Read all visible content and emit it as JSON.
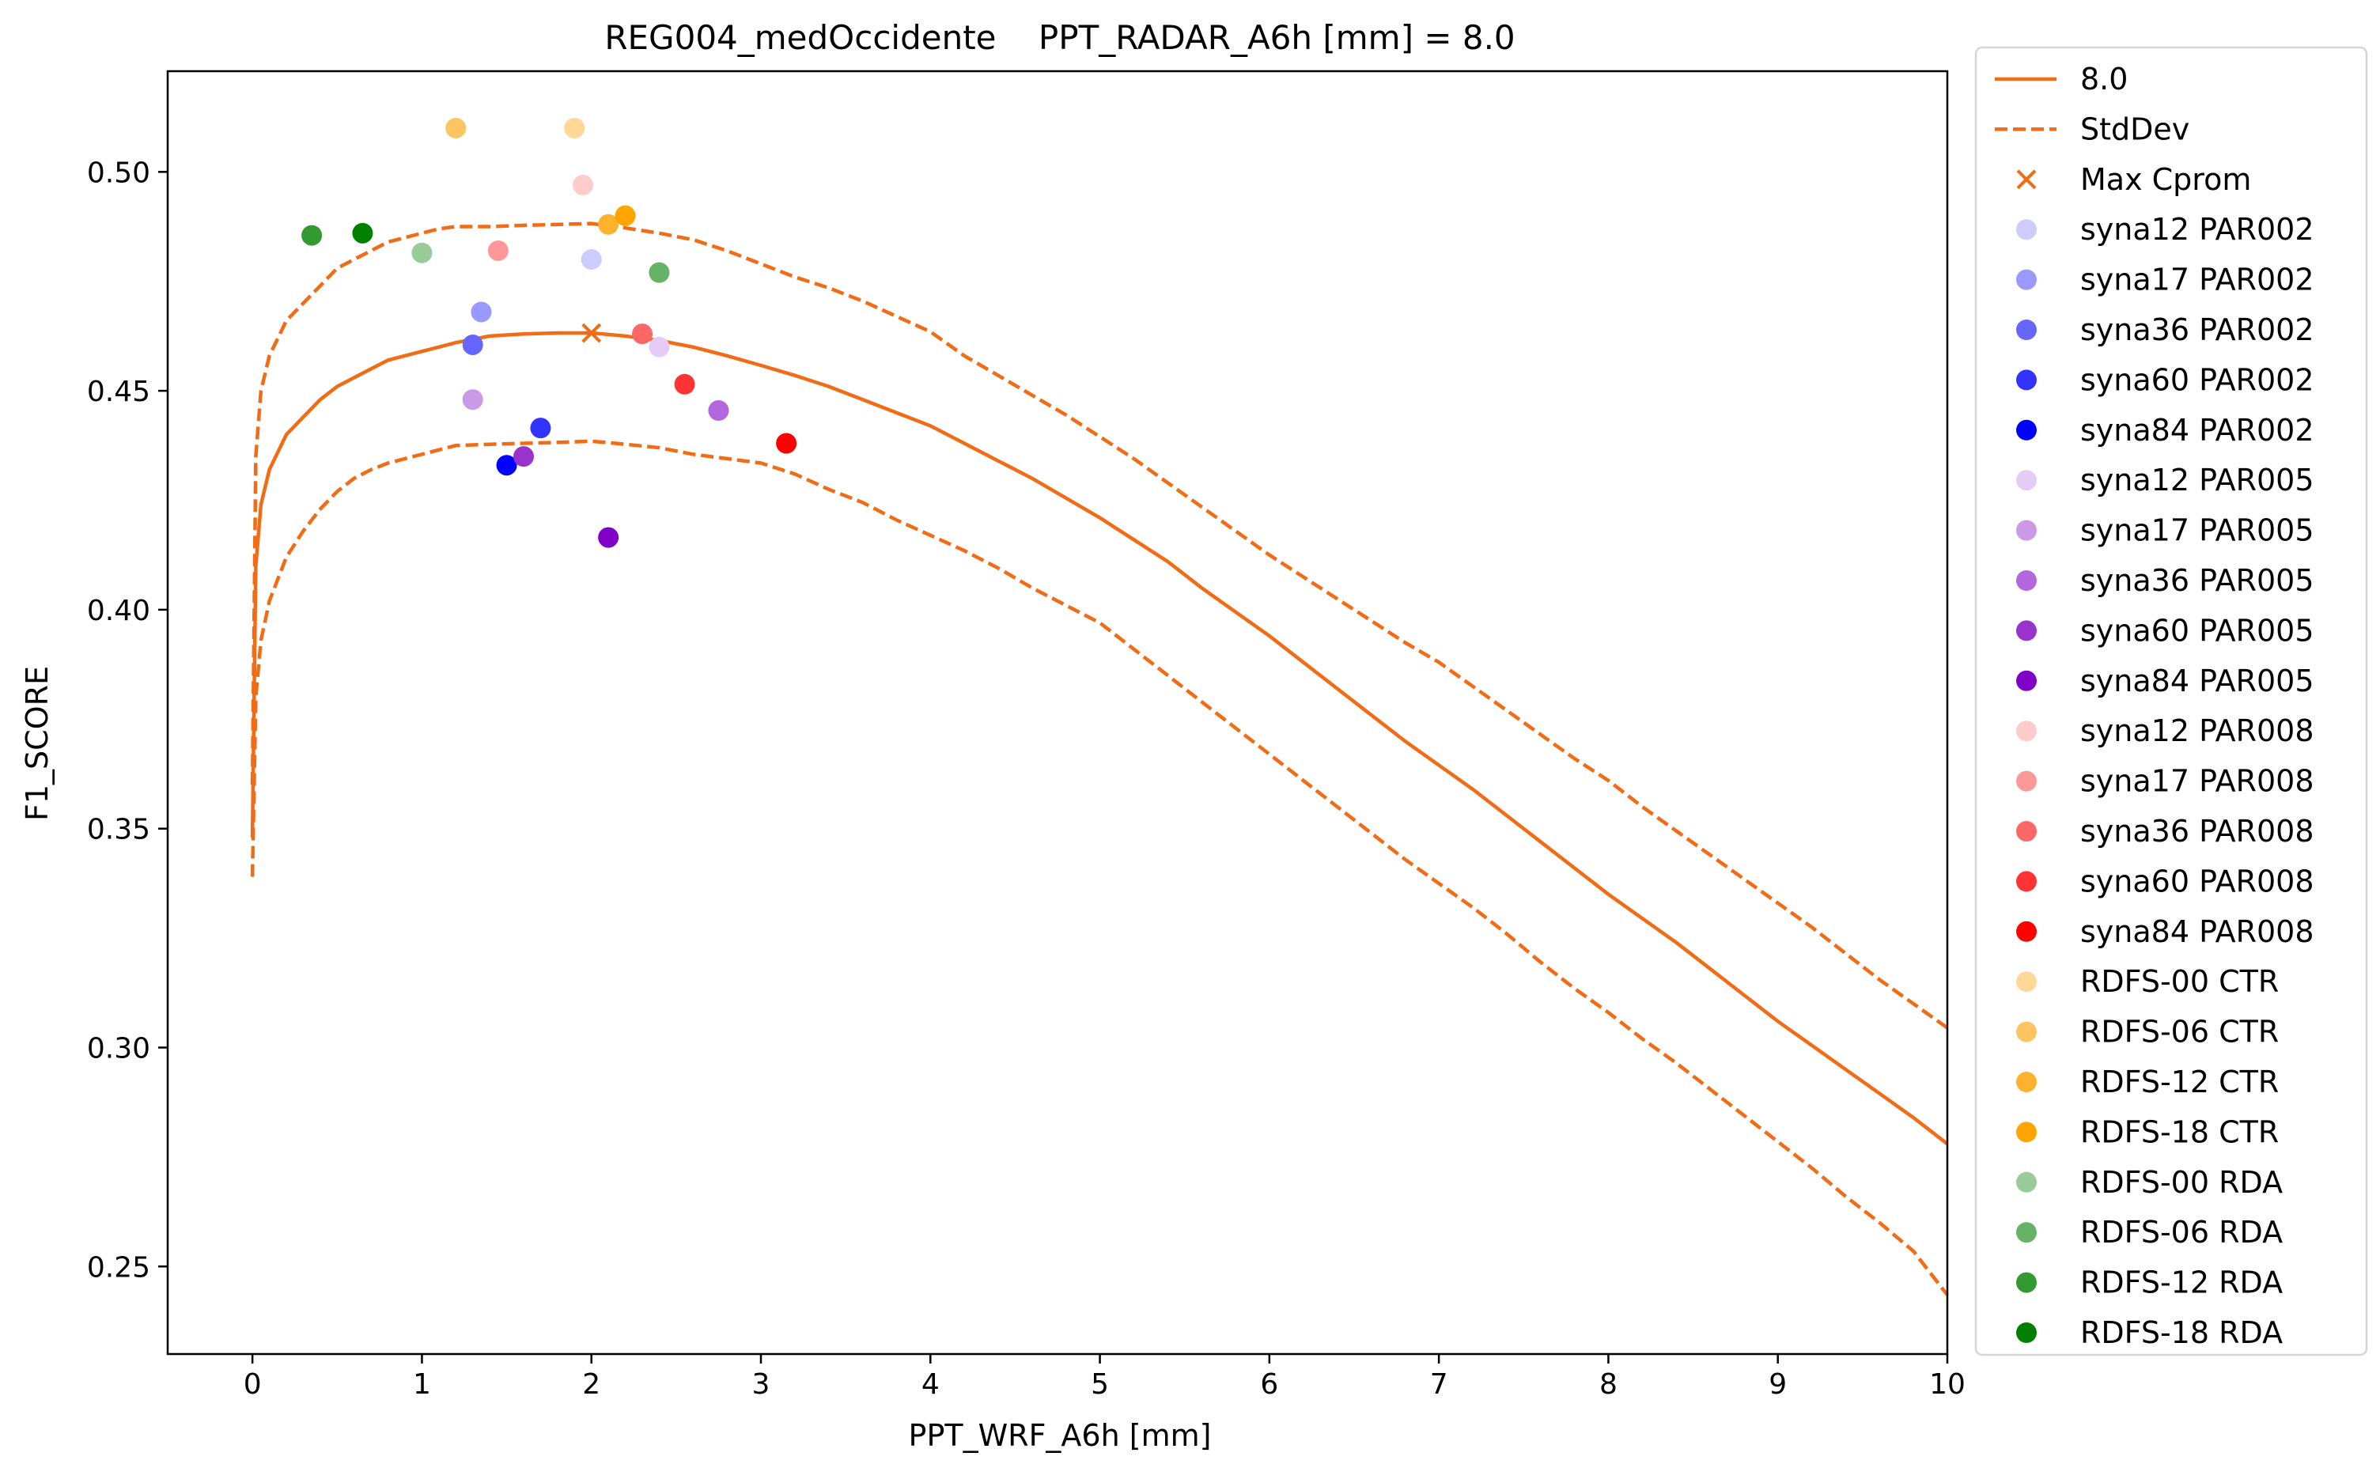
{
  "chart_data": {
    "type": "line",
    "title": "REG004_medOccidente    PPT_RADAR_A6h [mm] = 8.0",
    "xlabel": "PPT_WRF_A6h [mm]",
    "ylabel": "F1_SCORE",
    "xlim": [
      -0.5,
      10
    ],
    "ylim": [
      0.23,
      0.523
    ],
    "xticks": [
      0,
      1,
      2,
      3,
      4,
      5,
      6,
      7,
      8,
      9,
      10
    ],
    "xtick_labels": [
      "0",
      "1",
      "2",
      "3",
      "4",
      "5",
      "6",
      "7",
      "8",
      "9",
      "10"
    ],
    "yticks": [
      0.25,
      0.3,
      0.35,
      0.4,
      0.45,
      0.5
    ],
    "ytick_labels": [
      "0.25",
      "0.30",
      "0.35",
      "0.40",
      "0.45",
      "0.50"
    ],
    "grid": false,
    "legend_position": "outside right",
    "series": [
      {
        "name": "8.0",
        "style": "solid",
        "color": "#f26b15",
        "x": [
          0,
          0.02,
          0.05,
          0.1,
          0.2,
          0.3,
          0.4,
          0.5,
          0.6,
          0.7,
          0.8,
          0.9,
          1.0,
          1.1,
          1.2,
          1.4,
          1.6,
          1.8,
          2.0,
          2.2,
          2.4,
          2.6,
          2.8,
          3.0,
          3.2,
          3.4,
          3.6,
          3.8,
          4.0,
          4.2,
          4.4,
          4.6,
          4.8,
          5.0,
          5.2,
          5.4,
          5.6,
          5.8,
          6.0,
          6.2,
          6.4,
          6.6,
          6.8,
          7.0,
          7.2,
          7.4,
          7.6,
          7.8,
          8.0,
          8.2,
          8.4,
          8.6,
          8.8,
          9.0,
          9.2,
          9.4,
          9.6,
          9.8,
          10.0
        ],
        "values": [
          0.348,
          0.41,
          0.424,
          0.432,
          0.44,
          0.444,
          0.448,
          0.451,
          0.453,
          0.455,
          0.457,
          0.458,
          0.459,
          0.46,
          0.461,
          0.4625,
          0.463,
          0.4632,
          0.4632,
          0.4625,
          0.4615,
          0.46,
          0.458,
          0.4558,
          0.4535,
          0.451,
          0.448,
          0.445,
          0.442,
          0.438,
          0.434,
          0.43,
          0.4255,
          0.421,
          0.416,
          0.411,
          0.405,
          0.3995,
          0.394,
          0.388,
          0.382,
          0.376,
          0.37,
          0.3645,
          0.359,
          0.353,
          0.347,
          0.341,
          0.335,
          0.3295,
          0.324,
          0.318,
          0.312,
          0.306,
          0.3005,
          0.295,
          0.2895,
          0.284,
          0.278
        ]
      },
      {
        "name": "StdDev",
        "style": "dashed",
        "color": "#f26b15",
        "x": [
          0,
          0.02,
          0.05,
          0.1,
          0.2,
          0.3,
          0.4,
          0.5,
          0.6,
          0.7,
          0.8,
          0.9,
          1.0,
          1.1,
          1.2,
          1.4,
          1.6,
          1.8,
          2.0,
          2.2,
          2.4,
          2.6,
          2.8,
          3.0,
          3.2,
          3.4,
          3.6,
          3.8,
          4.0,
          4.2,
          4.4,
          4.6,
          4.8,
          5.0,
          5.2,
          5.4,
          5.6,
          5.8,
          6.0,
          6.2,
          6.4,
          6.6,
          6.8,
          7.0,
          7.2,
          7.4,
          7.6,
          7.8,
          8.0,
          8.2,
          8.4,
          8.6,
          8.8,
          9.0,
          9.2,
          9.4,
          9.6,
          9.8,
          10.0
        ],
        "values": [
          0.36,
          0.435,
          0.45,
          0.458,
          0.466,
          0.47,
          0.474,
          0.478,
          0.48,
          0.482,
          0.484,
          0.485,
          0.486,
          0.487,
          0.4875,
          0.4875,
          0.4878,
          0.488,
          0.4882,
          0.4872,
          0.486,
          0.4845,
          0.482,
          0.479,
          0.476,
          0.4735,
          0.4705,
          0.467,
          0.4635,
          0.458,
          0.4535,
          0.449,
          0.4445,
          0.4395,
          0.4345,
          0.429,
          0.4235,
          0.418,
          0.4125,
          0.4075,
          0.4025,
          0.3975,
          0.3925,
          0.388,
          0.3825,
          0.377,
          0.3715,
          0.366,
          0.361,
          0.355,
          0.3495,
          0.344,
          0.3385,
          0.333,
          0.3275,
          0.3215,
          0.3155,
          0.31,
          0.3045
        ],
        "lower_values": [
          0.339,
          0.38,
          0.393,
          0.402,
          0.412,
          0.418,
          0.423,
          0.427,
          0.43,
          0.432,
          0.4335,
          0.4345,
          0.4355,
          0.4365,
          0.4375,
          0.4378,
          0.438,
          0.4382,
          0.4385,
          0.4378,
          0.437,
          0.4355,
          0.4345,
          0.4335,
          0.431,
          0.4275,
          0.4245,
          0.4205,
          0.417,
          0.4135,
          0.4095,
          0.405,
          0.401,
          0.397,
          0.391,
          0.385,
          0.379,
          0.373,
          0.367,
          0.361,
          0.355,
          0.349,
          0.343,
          0.3375,
          0.332,
          0.326,
          0.3195,
          0.3135,
          0.308,
          0.302,
          0.2965,
          0.2905,
          0.2845,
          0.2785,
          0.2725,
          0.266,
          0.26,
          0.2535,
          0.2435
        ]
      }
    ],
    "max_cprom": {
      "name": "Max Cprom",
      "x": 2.0,
      "y": 0.4632,
      "color": "#f26b15"
    },
    "points": [
      {
        "name": "syna12 PAR002",
        "x": 2.0,
        "y": 0.48,
        "color": "#ccccff"
      },
      {
        "name": "syna17 PAR002",
        "x": 1.35,
        "y": 0.468,
        "color": "#9999ff"
      },
      {
        "name": "syna36 PAR002",
        "x": 1.3,
        "y": 0.4605,
        "color": "#6666ff"
      },
      {
        "name": "syna60 PAR002",
        "x": 1.7,
        "y": 0.4415,
        "color": "#3333ff"
      },
      {
        "name": "syna84 PAR002",
        "x": 1.5,
        "y": 0.433,
        "color": "#0000ff"
      },
      {
        "name": "syna12 PAR005",
        "x": 2.4,
        "y": 0.46,
        "color": "#e6ccf5"
      },
      {
        "name": "syna17 PAR005",
        "x": 1.3,
        "y": 0.448,
        "color": "#cc99e8"
      },
      {
        "name": "syna36 PAR005",
        "x": 2.75,
        "y": 0.4455,
        "color": "#b366dd"
      },
      {
        "name": "syna60 PAR005",
        "x": 1.6,
        "y": 0.435,
        "color": "#9933cc"
      },
      {
        "name": "syna84 PAR005",
        "x": 2.1,
        "y": 0.4165,
        "color": "#8000c8"
      },
      {
        "name": "syna12 PAR008",
        "x": 1.95,
        "y": 0.497,
        "color": "#ffcccc"
      },
      {
        "name": "syna17 PAR008",
        "x": 1.45,
        "y": 0.482,
        "color": "#ff9999"
      },
      {
        "name": "syna36 PAR008",
        "x": 2.3,
        "y": 0.463,
        "color": "#ff6666"
      },
      {
        "name": "syna60 PAR008",
        "x": 2.55,
        "y": 0.4515,
        "color": "#ff3333"
      },
      {
        "name": "syna84 PAR008",
        "x": 3.15,
        "y": 0.438,
        "color": "#ff0000"
      },
      {
        "name": "RDFS-00 CTR",
        "x": 1.9,
        "y": 0.51,
        "color": "#ffd898"
      },
      {
        "name": "RDFS-06 CTR",
        "x": 1.2,
        "y": 0.51,
        "color": "#ffc562"
      },
      {
        "name": "RDFS-12 CTR",
        "x": 2.1,
        "y": 0.488,
        "color": "#ffb22e"
      },
      {
        "name": "RDFS-18 CTR",
        "x": 2.2,
        "y": 0.49,
        "color": "#ffa500"
      },
      {
        "name": "RDFS-00 RDA",
        "x": 1.0,
        "y": 0.4815,
        "color": "#99cc99"
      },
      {
        "name": "RDFS-06 RDA",
        "x": 2.4,
        "y": 0.477,
        "color": "#66b266"
      },
      {
        "name": "RDFS-12 RDA",
        "x": 0.35,
        "y": 0.4855,
        "color": "#339933"
      },
      {
        "name": "RDFS-18 RDA",
        "x": 0.65,
        "y": 0.486,
        "color": "#007f00"
      }
    ]
  }
}
